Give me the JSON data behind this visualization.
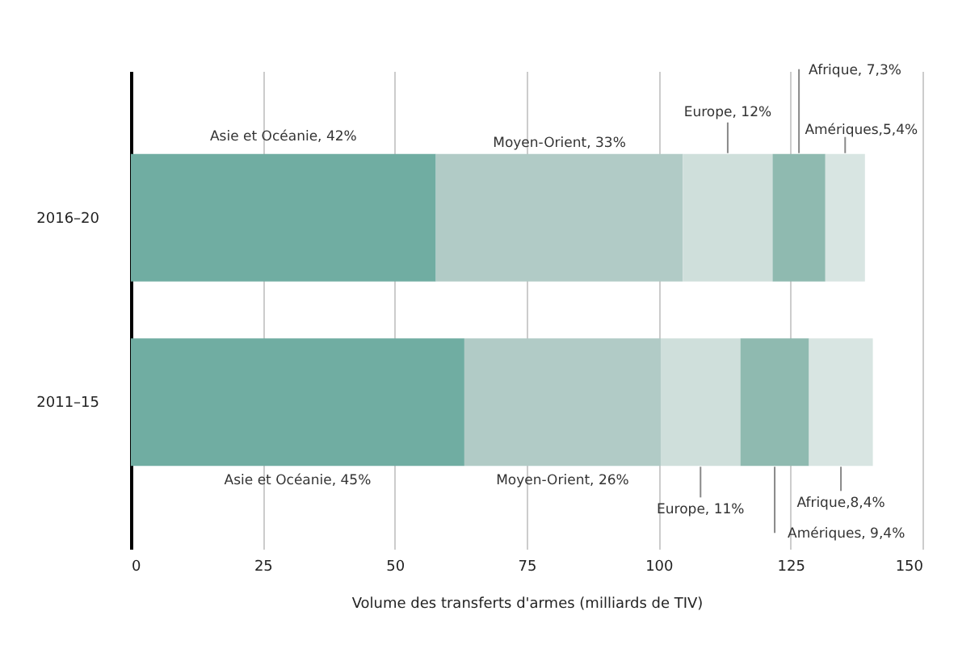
{
  "chart_data": {
    "type": "bar",
    "orientation": "horizontal",
    "stacked": true,
    "categories": [
      "2016–20",
      "2011–15"
    ],
    "xlabel": "Volume des transferts d'armes (milliards de TIV)",
    "xlim": [
      0,
      150
    ],
    "xticks": [
      0,
      25,
      50,
      75,
      100,
      125,
      150
    ],
    "grid": "x",
    "series": [
      {
        "color": "#70ada2",
        "values": [
          57.8,
          63.2
        ]
      },
      {
        "color": "#b1cbc6",
        "values": [
          46.8,
          37.2
        ]
      },
      {
        "color": "#cfdfdb",
        "values": [
          17.0,
          15.1
        ]
      },
      {
        "color": "#8fbab0",
        "values": [
          10.0,
          13.0
        ]
      },
      {
        "color": "#d8e5e2",
        "values": [
          7.5,
          12.1
        ]
      }
    ],
    "annotations": [
      "Asie et Océanie, 42%",
      "Moyen-Orient, 33%",
      "Europe, 12%",
      "Afrique, 7,3%",
      "Amériques,5,4%",
      "Asie et Océanie, 45%",
      "Moyen-Orient, 26%",
      "Europe, 11%",
      "Amériques, 9,4%",
      "Afrique,8,4%"
    ]
  }
}
